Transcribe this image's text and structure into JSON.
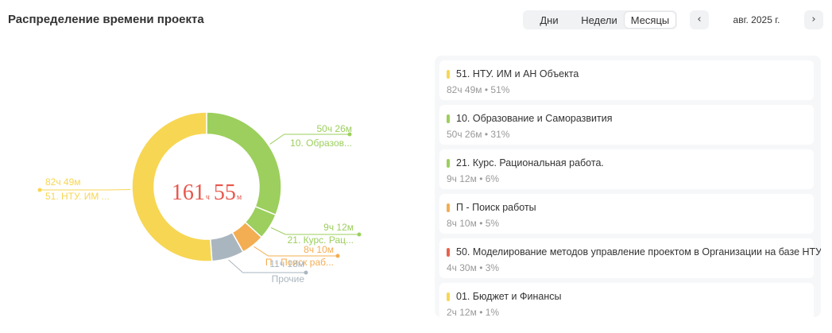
{
  "header": {
    "title": "Распределение времени проекта"
  },
  "period_tabs": [
    {
      "label": "Дни",
      "active": false
    },
    {
      "label": "Недели",
      "active": false
    },
    {
      "label": "Месяцы",
      "active": true
    }
  ],
  "period": {
    "label": "авг. 2025 г.",
    "prev_icon": "chevron-left-icon",
    "next_icon": "chevron-right-icon"
  },
  "total": {
    "hours": "161",
    "hours_unit": "ч",
    "minutes": "55",
    "minutes_unit": "м",
    "color": "#e8564b"
  },
  "colors": {
    "yellow": "#f7d653",
    "green": "#9ccf5d",
    "orange": "#f3ad52",
    "red": "#e8624d",
    "gray": "#aab6bf"
  },
  "chart_data": {
    "type": "pie",
    "variant": "donut",
    "slices": [
      {
        "name": "10. Образов...",
        "time": "50ч 26м",
        "minutes": 3026,
        "color": "#9ccf5d"
      },
      {
        "name": "21. Курс. Рац...",
        "time": "9ч 12м",
        "minutes": 552,
        "color": "#9ccf5d"
      },
      {
        "name": "П - Поиск раб...",
        "time": "8ч 10м",
        "minutes": 490,
        "color": "#f3ad52"
      },
      {
        "name": "Прочие",
        "time": "11ч 18м",
        "minutes": 678,
        "color": "#aab6bf"
      },
      {
        "name": "51. НТУ. ИМ ...",
        "time": "82ч 49м",
        "minutes": 4969,
        "color": "#f7d653"
      }
    ]
  },
  "legend": [
    {
      "name": "51. НТУ. ИМ и АН Объекта",
      "meta": "82ч 49м • 51%",
      "color": "#f7d653"
    },
    {
      "name": "10. Образование и Саморазвития",
      "meta": "50ч 26м • 31%",
      "color": "#9ccf5d"
    },
    {
      "name": "21. Курс. Рациональная работа.",
      "meta": "9ч 12м • 6%",
      "color": "#9ccf5d"
    },
    {
      "name": "П - Поиск работы",
      "meta": "8ч 10м • 5%",
      "color": "#f3ad52"
    },
    {
      "name": "50. Моделирование методов управление проектом в Организации на базе НТУ",
      "meta": "4ч 30м • 3%",
      "color": "#e8624d"
    },
    {
      "name": "01. Бюджет и Финансы",
      "meta": "2ч 12м • 1%",
      "color": "#f7d653"
    }
  ]
}
